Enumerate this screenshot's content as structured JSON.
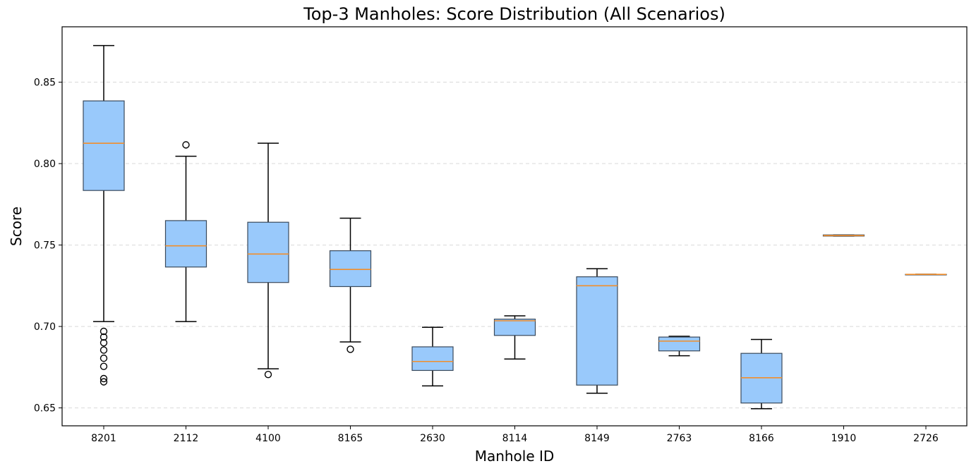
{
  "chart_data": {
    "type": "box",
    "title": "Top-3 Manholes: Score Distribution (All Scenarios)",
    "xlabel": "Manhole ID",
    "ylabel": "Score",
    "ylim": [
      0.639,
      0.884
    ],
    "yticks": [
      0.65,
      0.7,
      0.75,
      0.8,
      0.85
    ],
    "ytick_labels": [
      "0.65",
      "0.70",
      "0.75",
      "0.80",
      "0.85"
    ],
    "grid": "y-dashed",
    "colors": {
      "box_fill": "#99c9fb",
      "box_edge": "#3a4a5c",
      "median": "#f28e2b",
      "whisker": "#000000",
      "grid": "#d9d9d9"
    },
    "categories": [
      "8201",
      "2112",
      "4100",
      "8165",
      "2630",
      "8114",
      "8149",
      "2763",
      "8166",
      "1910",
      "2726"
    ],
    "boxes": [
      {
        "id": "8201",
        "whisker_low": 0.703,
        "q1": 0.7835,
        "median": 0.8125,
        "q3": 0.8385,
        "whisker_high": 0.8725,
        "outliers": [
          0.697,
          0.6935,
          0.69,
          0.6855,
          0.6805,
          0.6755,
          0.668,
          0.666
        ]
      },
      {
        "id": "2112",
        "whisker_low": 0.703,
        "q1": 0.7365,
        "median": 0.7495,
        "q3": 0.765,
        "whisker_high": 0.8045,
        "outliers": [
          0.8115
        ]
      },
      {
        "id": "4100",
        "whisker_low": 0.674,
        "q1": 0.727,
        "median": 0.7445,
        "q3": 0.764,
        "whisker_high": 0.8125,
        "outliers": [
          0.6705
        ]
      },
      {
        "id": "8165",
        "whisker_low": 0.6905,
        "q1": 0.7245,
        "median": 0.735,
        "q3": 0.7465,
        "whisker_high": 0.7665,
        "outliers": [
          0.686
        ]
      },
      {
        "id": "2630",
        "whisker_low": 0.6635,
        "q1": 0.673,
        "median": 0.6785,
        "q3": 0.6875,
        "whisker_high": 0.6995,
        "outliers": []
      },
      {
        "id": "8114",
        "whisker_low": 0.68,
        "q1": 0.6945,
        "median": 0.7035,
        "q3": 0.7045,
        "whisker_high": 0.7065,
        "outliers": []
      },
      {
        "id": "8149",
        "whisker_low": 0.659,
        "q1": 0.664,
        "median": 0.725,
        "q3": 0.7305,
        "whisker_high": 0.7355,
        "outliers": []
      },
      {
        "id": "2763",
        "whisker_low": 0.682,
        "q1": 0.685,
        "median": 0.691,
        "q3": 0.6935,
        "whisker_high": 0.694,
        "outliers": []
      },
      {
        "id": "8166",
        "whisker_low": 0.6495,
        "q1": 0.653,
        "median": 0.6685,
        "q3": 0.6835,
        "whisker_high": 0.692,
        "outliers": []
      },
      {
        "id": "1910",
        "whisker_low": 0.7555,
        "q1": 0.7555,
        "median": 0.7558,
        "q3": 0.7562,
        "whisker_high": 0.7562,
        "outliers": []
      },
      {
        "id": "2726",
        "whisker_low": 0.732,
        "q1": 0.732,
        "median": 0.732,
        "q3": 0.732,
        "whisker_high": 0.732,
        "outliers": []
      }
    ]
  }
}
